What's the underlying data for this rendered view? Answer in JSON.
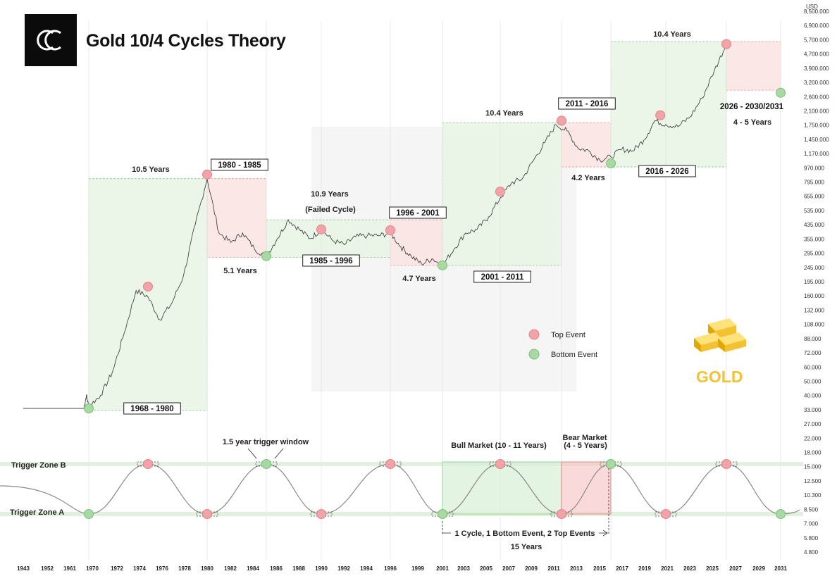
{
  "title": "Gold 10/4 Cycles Theory",
  "brand": {
    "word": "GOLD",
    "logo_icon": "cc-logo-icon",
    "gold_icon": "gold-bars-icon"
  },
  "currency_label": "USD",
  "colors": {
    "top": "#f1a3a8",
    "bottom": "#a7d9a2",
    "green_box": "#e8f5e4",
    "red_box": "#fbe3e3",
    "line": "#444444",
    "gold": "#f3c232"
  },
  "legend": {
    "top_label": "Top Event",
    "bottom_label": "Bottom Event"
  },
  "chart_data": {
    "type": "line",
    "series_name": "",
    "y_scale": "log",
    "y_ticks": [
      "8,500.000",
      "6,900.000",
      "5,700.000",
      "4,700.000",
      "3,900.000",
      "3,200.000",
      "2,600.000",
      "2,100.000",
      "1,750.000",
      "1,450.000",
      "1,170.000",
      "970.000",
      "795.000",
      "655.000",
      "535.000",
      "435.000",
      "355.000",
      "295.000",
      "245.000",
      "195.000",
      "160.000",
      "132.000",
      "108.000",
      "88.000",
      "72.000",
      "60.000",
      "50.000",
      "40.000",
      "33.000",
      "27.000",
      "22.000",
      "18.000",
      "15.000",
      "12.500",
      "10.300",
      "8.500",
      "7.000",
      "5.800",
      "4.800"
    ],
    "x_ticks": [
      "1943",
      "1952",
      "1961",
      "1970",
      "1972",
      "1974",
      "1976",
      "1978",
      "1980",
      "1982",
      "1984",
      "1986",
      "1988",
      "1990",
      "1992",
      "1994",
      "1996",
      "1999",
      "2001",
      "2003",
      "2005",
      "2007",
      "2009",
      "2011",
      "2013",
      "2015",
      "2017",
      "2019",
      "2021",
      "2023",
      "2025",
      "2027",
      "2029",
      "2031"
    ],
    "price_points": [
      [
        1943,
        35
      ],
      [
        1968,
        35
      ],
      [
        1969,
        42
      ],
      [
        1970,
        36
      ],
      [
        1971,
        42
      ],
      [
        1972,
        58
      ],
      [
        1973,
        100
      ],
      [
        1974,
        180
      ],
      [
        1975,
        165
      ],
      [
        1976,
        120
      ],
      [
        1977,
        150
      ],
      [
        1978,
        220
      ],
      [
        1979,
        450
      ],
      [
        1980,
        850
      ],
      [
        1981,
        400
      ],
      [
        1982,
        350
      ],
      [
        1983,
        400
      ],
      [
        1984,
        320
      ],
      [
        1985,
        290
      ],
      [
        1986,
        370
      ],
      [
        1987,
        480
      ],
      [
        1988,
        420
      ],
      [
        1989,
        370
      ],
      [
        1990,
        420
      ],
      [
        1991,
        360
      ],
      [
        1992,
        340
      ],
      [
        1993,
        380
      ],
      [
        1994,
        385
      ],
      [
        1995,
        385
      ],
      [
        1996,
        400
      ],
      [
        1997,
        330
      ],
      [
        1998,
        290
      ],
      [
        1999,
        260
      ],
      [
        2000,
        280
      ],
      [
        2001,
        255
      ],
      [
        2002,
        320
      ],
      [
        2003,
        400
      ],
      [
        2004,
        420
      ],
      [
        2005,
        500
      ],
      [
        2006,
        650
      ],
      [
        2007,
        800
      ],
      [
        2008,
        850
      ],
      [
        2009,
        1100
      ],
      [
        2010,
        1400
      ],
      [
        2011,
        1800
      ],
      [
        2012,
        1650
      ],
      [
        2013,
        1300
      ],
      [
        2014,
        1250
      ],
      [
        2015,
        1100
      ],
      [
        2016,
        1150
      ],
      [
        2017,
        1280
      ],
      [
        2018,
        1250
      ],
      [
        2019,
        1450
      ],
      [
        2020,
        1900
      ],
      [
        2021,
        1800
      ],
      [
        2022,
        1750
      ],
      [
        2023,
        2000
      ],
      [
        2024,
        2600
      ],
      [
        2025,
        3800
      ],
      [
        2026,
        5500
      ]
    ],
    "top_events": [
      {
        "year": 1975,
        "value": 190
      },
      {
        "year": 1980,
        "value": 900
      },
      {
        "year": 1990,
        "value": 420
      },
      {
        "year": 1996,
        "value": 415
      },
      {
        "year": 2006,
        "value": 710
      },
      {
        "year": 2011.5,
        "value": 1900
      },
      {
        "year": 2020.5,
        "value": 2050
      },
      {
        "year": 2026,
        "value": 5500
      }
    ],
    "bottom_events": [
      {
        "year": 1970,
        "value": 35
      },
      {
        "year": 1985,
        "value": 290
      },
      {
        "year": 2001,
        "value": 255
      },
      {
        "year": 2016,
        "value": 1050
      },
      {
        "year": 2031,
        "value": 2800
      }
    ],
    "cycle_boxes": [
      {
        "type": "bull",
        "from": 1970,
        "to": 1980,
        "low": 34,
        "high": 850,
        "range_label": "1968 - 1980",
        "duration": "10.5 Years"
      },
      {
        "type": "bear",
        "from": 1980,
        "to": 1985,
        "low": 285,
        "high": 850,
        "range_label": "1980 - 1985",
        "duration": "5.1 Years"
      },
      {
        "type": "bull",
        "from": 1985,
        "to": 1996,
        "low": 285,
        "high": 480,
        "range_label": "1985 - 1996",
        "duration": "10.9 Years",
        "note": "(Failed Cycle)"
      },
      {
        "type": "bear",
        "from": 1996,
        "to": 2001,
        "low": 255,
        "high": 480,
        "range_label": "1996 - 2001",
        "duration": "4.7 Years"
      },
      {
        "type": "bull",
        "from": 2001,
        "to": 2011.5,
        "low": 255,
        "high": 1850,
        "range_label": "2001 - 2011",
        "duration": "10.4 Years"
      },
      {
        "type": "bear",
        "from": 2011.5,
        "to": 2016,
        "low": 1000,
        "high": 1850,
        "range_label": "2011 - 2016",
        "duration": "4.2 Years"
      },
      {
        "type": "bull",
        "from": 2016,
        "to": 2026,
        "low": 1000,
        "high": 5700,
        "range_label": "2016 - 2026",
        "duration": "10.4 Years"
      },
      {
        "type": "bear",
        "from": 2026,
        "to": 2031,
        "low": 2900,
        "high": 5700,
        "range_label": "2026 - 2030/2031",
        "duration": "4 - 5 Years"
      }
    ]
  },
  "oscillator": {
    "zone_b": "Trigger Zone B",
    "zone_a": "Trigger Zone A",
    "trigger_window": "1.5 year trigger window",
    "bull_label": "Bull Market (10 - 11 Years)",
    "bear_label_1": "Bear Market",
    "bear_label_2": "(4 - 5 Years)",
    "cycle_note": "1 Cycle, 1 Bottom Event, 2 Top Events",
    "cycle_years": "15 Years",
    "peaks": [
      1975,
      1985,
      1996,
      2006,
      2016,
      2026
    ],
    "troughs": [
      1970,
      1980,
      1990,
      2001,
      2011.5,
      2021,
      2031
    ]
  }
}
